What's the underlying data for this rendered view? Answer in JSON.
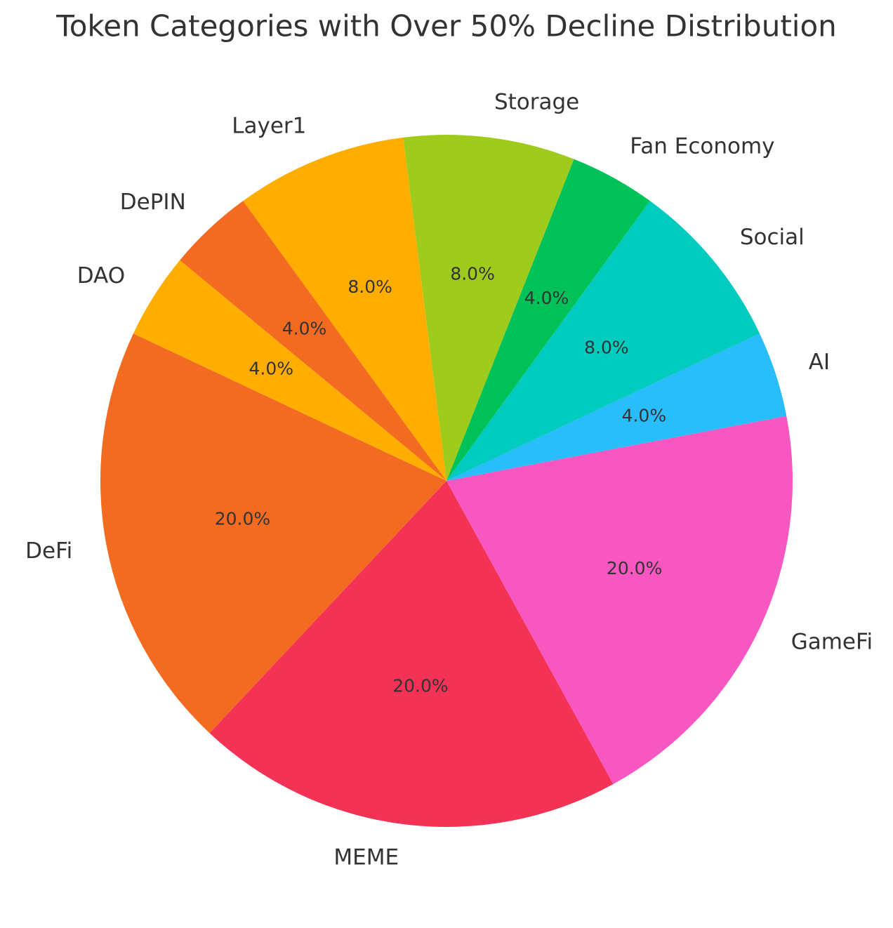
{
  "chart_data": {
    "type": "pie",
    "title": "Token Categories with Over 50% Decline Distribution",
    "categories": [
      "DeFi",
      "MEME",
      "GameFi",
      "AI",
      "Social",
      "Fan Economy",
      "Storage",
      "Layer1",
      "DePIN",
      "DAO"
    ],
    "values": [
      20,
      20,
      20,
      4,
      8,
      4,
      8,
      8,
      4,
      4
    ],
    "value_labels": [
      "20.0%",
      "20.0%",
      "20.0%",
      "4.0%",
      "8.0%",
      "4.0%",
      "8.0%",
      "8.0%",
      "4.0%",
      "4.0%"
    ],
    "colors": [
      "#f26b21",
      "#f43256",
      "#f857c1",
      "#29bdfb",
      "#00cbbf",
      "#01c159",
      "#9fcb1d",
      "#ffae00",
      "#f26b21",
      "#ffae00"
    ]
  }
}
